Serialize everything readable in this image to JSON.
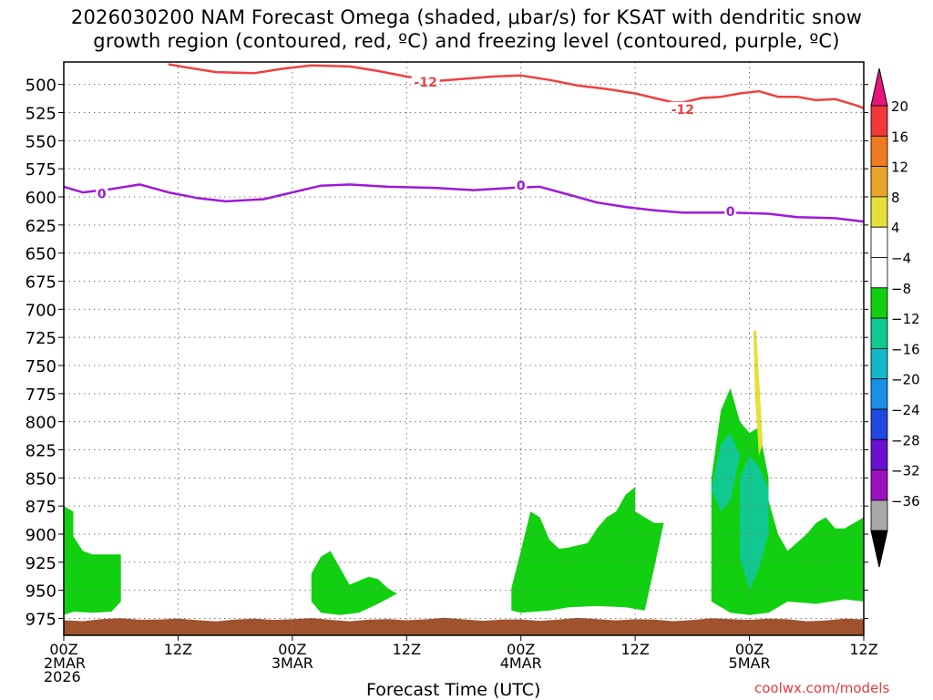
{
  "title_line1": "2026030200 NAM Forecast Omega (shaded, μbar/s) for KSAT with dendritic snow",
  "title_line2": "growth region (contoured, red, ºC) and freezing level (contoured, purple, ºC)",
  "credit": "coolwx.com/models",
  "chart_data": {
    "type": "area",
    "xlabel": "Forecast Time (UTC)",
    "ylabel": "",
    "x_range_hours": [
      0,
      84
    ],
    "y_range_hPa": [
      990,
      480
    ],
    "y_scale": "inverted (pressure)",
    "grid": true,
    "y_ticks": [
      500,
      525,
      550,
      575,
      600,
      625,
      650,
      675,
      700,
      725,
      750,
      775,
      800,
      825,
      850,
      875,
      900,
      925,
      950,
      975
    ],
    "x_ticks": [
      {
        "hour": 0,
        "line1": "00Z",
        "line2": "2MAR",
        "line3": "2026"
      },
      {
        "hour": 12,
        "line1": "12Z",
        "line2": "",
        "line3": ""
      },
      {
        "hour": 24,
        "line1": "00Z",
        "line2": "3MAR",
        "line3": ""
      },
      {
        "hour": 36,
        "line1": "12Z",
        "line2": "",
        "line3": ""
      },
      {
        "hour": 48,
        "line1": "00Z",
        "line2": "4MAR",
        "line3": ""
      },
      {
        "hour": 60,
        "line1": "12Z",
        "line2": "",
        "line3": ""
      },
      {
        "hour": 72,
        "line1": "00Z",
        "line2": "5MAR",
        "line3": ""
      },
      {
        "hour": 84,
        "line1": "12Z",
        "line2": "",
        "line3": ""
      }
    ],
    "colorbar": {
      "labels": [
        "20",
        "16",
        "12",
        "8",
        "4",
        "−4",
        "−8",
        "−12",
        "−16",
        "−20",
        "−24",
        "−28",
        "−32",
        "−36"
      ],
      "top_color": "#e8157a",
      "bottom_color": "#000000",
      "colors": [
        "#f0393b",
        "#f07a20",
        "#e8a52a",
        "#e6e03a",
        "#ffffff",
        "#ffffff",
        "#10d010",
        "#10c990",
        "#10b8c8",
        "#1890e8",
        "#2048e0",
        "#6a10d0",
        "#9a10c0",
        "#a8a8a8"
      ]
    },
    "contours": [
      {
        "name": "dgz_minus12",
        "color": "#f04040",
        "labels": [
          {
            "x": 38,
            "y": 498,
            "text": "-12"
          },
          {
            "x": 65,
            "y": 522,
            "text": "-12"
          }
        ],
        "points": [
          [
            11,
            482
          ],
          [
            13,
            485
          ],
          [
            16,
            489
          ],
          [
            20,
            490
          ],
          [
            23,
            486
          ],
          [
            26,
            483
          ],
          [
            30,
            484
          ],
          [
            33,
            488
          ],
          [
            36,
            493
          ],
          [
            39,
            497
          ],
          [
            42,
            495
          ],
          [
            45,
            493
          ],
          [
            48,
            492
          ],
          [
            51,
            496
          ],
          [
            54,
            501
          ],
          [
            57,
            504
          ],
          [
            60,
            508
          ],
          [
            62,
            512
          ],
          [
            64,
            516
          ],
          [
            65,
            516
          ],
          [
            67,
            512
          ],
          [
            69,
            511
          ],
          [
            71,
            508
          ],
          [
            73,
            506
          ],
          [
            75,
            511
          ],
          [
            77,
            511
          ],
          [
            79,
            514
          ],
          [
            81,
            513
          ],
          [
            83,
            518
          ],
          [
            84,
            521
          ]
        ]
      },
      {
        "name": "freezing_level_0",
        "color": "#a018d8",
        "labels": [
          {
            "x": 4,
            "y": 597,
            "text": "0"
          },
          {
            "x": 48,
            "y": 590,
            "text": "0"
          },
          {
            "x": 70,
            "y": 613,
            "text": "0"
          }
        ],
        "points": [
          [
            0,
            591
          ],
          [
            2,
            596
          ],
          [
            5,
            593
          ],
          [
            8,
            589
          ],
          [
            11,
            596
          ],
          [
            14,
            601
          ],
          [
            17,
            604
          ],
          [
            21,
            602
          ],
          [
            24,
            596
          ],
          [
            27,
            590
          ],
          [
            30,
            589
          ],
          [
            34,
            591
          ],
          [
            39,
            592
          ],
          [
            43,
            594
          ],
          [
            47,
            592
          ],
          [
            50,
            591
          ],
          [
            53,
            598
          ],
          [
            56,
            605
          ],
          [
            59,
            609
          ],
          [
            62,
            612
          ],
          [
            65,
            614
          ],
          [
            70,
            614
          ],
          [
            74,
            615
          ],
          [
            77,
            618
          ],
          [
            81,
            619
          ],
          [
            84,
            622
          ]
        ]
      }
    ],
    "ground_color": "#a0522d",
    "shaded_regions": [
      {
        "name": "green_-4_-8",
        "value_range": [
          -8,
          -4
        ],
        "color": "#10d010",
        "points": [
          [
            0,
            875
          ],
          [
            1,
            880
          ],
          [
            1,
            902
          ],
          [
            2,
            915
          ],
          [
            3,
            918
          ],
          [
            5,
            918
          ],
          [
            6,
            918
          ],
          [
            6,
            960
          ],
          [
            5,
            969
          ],
          [
            3,
            970
          ],
          [
            1,
            969
          ],
          [
            0,
            972
          ]
        ]
      },
      {
        "name": "green_-4_-8",
        "value_range": [
          -8,
          -4
        ],
        "color": "#10d010",
        "points": [
          [
            26,
            935
          ],
          [
            27,
            920
          ],
          [
            28,
            915
          ],
          [
            29,
            930
          ],
          [
            30,
            945
          ],
          [
            32,
            938
          ],
          [
            33,
            940
          ],
          [
            34,
            948
          ],
          [
            35,
            953
          ],
          [
            33,
            962
          ],
          [
            31,
            970
          ],
          [
            29,
            972
          ],
          [
            27,
            970
          ],
          [
            26,
            960
          ]
        ]
      },
      {
        "name": "green_-4_-8",
        "value_range": [
          -8,
          -4
        ],
        "color": "#10d010",
        "points": [
          [
            47,
            948
          ],
          [
            48,
            915
          ],
          [
            49,
            880
          ],
          [
            50,
            885
          ],
          [
            51,
            905
          ],
          [
            52,
            913
          ],
          [
            53,
            912
          ],
          [
            54,
            910
          ],
          [
            55,
            908
          ],
          [
            56,
            895
          ],
          [
            57,
            885
          ],
          [
            58,
            880
          ],
          [
            59,
            865
          ],
          [
            60,
            858
          ],
          [
            60,
            880
          ],
          [
            61,
            885
          ],
          [
            62,
            890
          ],
          [
            63,
            890
          ],
          [
            62,
            930
          ],
          [
            61,
            968
          ],
          [
            59,
            965
          ],
          [
            56,
            964
          ],
          [
            53,
            965
          ],
          [
            51,
            968
          ],
          [
            48,
            970
          ],
          [
            47,
            968
          ]
        ]
      },
      {
        "name": "green_-4_-8",
        "value_range": [
          -8,
          -4
        ],
        "color": "#10d010",
        "points": [
          [
            68,
            850
          ],
          [
            69,
            790
          ],
          [
            70,
            770
          ],
          [
            71,
            800
          ],
          [
            72,
            810
          ],
          [
            73,
            805
          ],
          [
            74,
            850
          ],
          [
            74,
            870
          ],
          [
            75,
            900
          ],
          [
            76,
            915
          ],
          [
            78,
            900
          ],
          [
            79,
            890
          ],
          [
            80,
            885
          ],
          [
            81,
            895
          ],
          [
            82,
            895
          ],
          [
            83,
            890
          ],
          [
            84,
            885
          ],
          [
            84,
            960
          ],
          [
            82,
            958
          ],
          [
            79,
            962
          ],
          [
            76,
            960
          ],
          [
            74,
            970
          ],
          [
            72,
            972
          ],
          [
            70,
            970
          ],
          [
            68,
            960
          ]
        ]
      },
      {
        "name": "teal_-8_-12",
        "value_range": [
          -12,
          -8
        ],
        "color": "#10c990",
        "points": [
          [
            69,
            820
          ],
          [
            70,
            810
          ],
          [
            71,
            830
          ],
          [
            70,
            870
          ],
          [
            69,
            880
          ],
          [
            68,
            860
          ]
        ]
      },
      {
        "name": "teal_-8_-12",
        "value_range": [
          -12,
          -8
        ],
        "color": "#10c990",
        "points": [
          [
            71,
            850
          ],
          [
            72,
            830
          ],
          [
            73,
            840
          ],
          [
            74,
            860
          ],
          [
            74,
            900
          ],
          [
            73,
            930
          ],
          [
            72,
            950
          ],
          [
            71,
            920
          ]
        ]
      },
      {
        "name": "yellow_4_8",
        "value_range": [
          4,
          8
        ],
        "color": "#e6e03a",
        "points": [
          [
            72.4,
            720
          ],
          [
            72.7,
            718
          ],
          [
            73.1,
            775
          ],
          [
            73.4,
            820
          ],
          [
            73.0,
            830
          ],
          [
            72.6,
            780
          ]
        ]
      }
    ]
  }
}
